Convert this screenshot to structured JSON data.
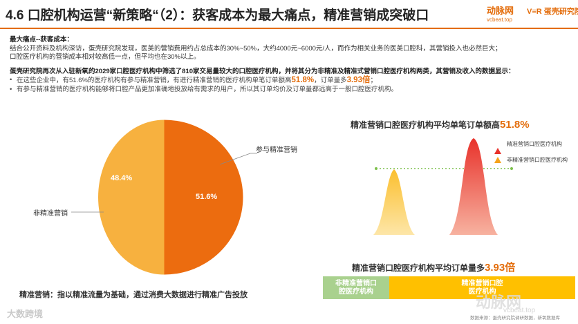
{
  "header": {
    "title": "4.6 口腔机构运营“新策略“（2）：获客成本为最大痛点，精准营销成突破口",
    "logo1_main": "动脉网",
    "logo1_sub": "vcbeat.top",
    "logo2_main": "V≡R 蛋壳研究院"
  },
  "intro": {
    "heading": "最大痛点--获客成本：",
    "line1": "结合公开资料及机构深访，蛋壳研究院发现，医美的营销费用约占总成本的30%~50%，大约4000元~6000元/人，而作为相关业务的医美口腔科，其营销投入也必然巨大；",
    "line2": "口腔医疗机构的营销成本相对较高低一点，但平均也在30%以上。",
    "lead": "蛋壳研究院再次从入驻新氧的2029家口腔医疗机构中筛选了810家交易量较大的口腔医疗机构，并将其分为非精准及精准式营销口腔医疗机构两类，其营销及收入的数据显示：",
    "bullet1_pre": "在这些企业中，有51.6%的医疗机构有参与精准营销，有进行精准营销的医疗机构单笔订单额高",
    "bullet1_val1": "51.8%",
    "bullet1_mid": "，订单量多",
    "bullet1_val2": "3.93倍",
    "bullet1_post": "；",
    "bullet2": "有参与精准营销的医疗机构能够将口腔产品更加准确地投放给有需求的用户，所以其订单均价及订单量都远高于一般口腔医疗机构。"
  },
  "pie": {
    "label_orange": "51.6%",
    "label_yellow": "48.4%",
    "callout_orange": "参与精准营销",
    "callout_yellow": "非精准营销",
    "colors": {
      "orange": "#ec6c0f",
      "yellow": "#f7b13f"
    }
  },
  "peak_chart": {
    "title_pre": "精准营销口腔医疗机构平均单笔订单额高",
    "title_val": "51.8%",
    "legend": [
      {
        "label": "精准营销口腔医疗机构",
        "color": "#e8322b",
        "icon": "red-triangle-icon"
      },
      {
        "label": "非精准营销口腔医疗机构",
        "color": "#f5a31b",
        "icon": "orange-triangle-icon"
      }
    ]
  },
  "bar_chart": {
    "title_pre": "精准营销口腔医疗机构平均订单量多",
    "title_val": "3.93倍",
    "seg1_label": "非精准营销口\n腔医疗机构",
    "seg2_label": "精准营销口腔\n医疗机构",
    "colors": {
      "seg1": "#a9d18e",
      "seg2": "#ffc000"
    }
  },
  "footer": {
    "definition": "精准营销：指以精准流量为基础，通过消费大数据进行精准广告投放",
    "source": "数据来源：蛋壳研究院调研数据，新氧数据库",
    "watermark_left": "大数跨境",
    "watermark_right": "动脉网",
    "watermark_right_sub": "vcbeat.top"
  }
}
